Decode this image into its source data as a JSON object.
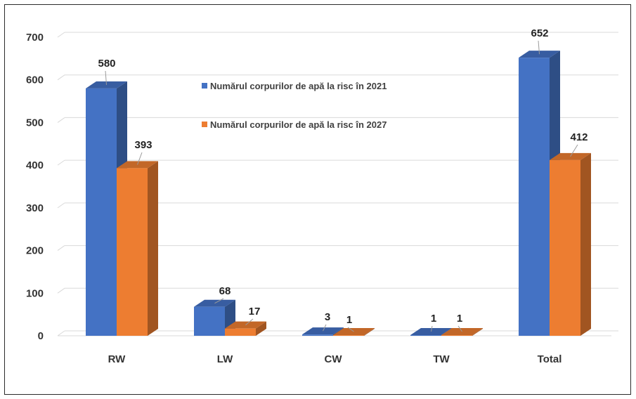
{
  "chart_data": {
    "type": "bar",
    "categories": [
      "RW",
      "LW",
      "CW",
      "TW",
      "Total"
    ],
    "series": [
      {
        "name": "Numărul corpurilor de apă la risc în 2021",
        "values": [
          580,
          68,
          3,
          1,
          652
        ],
        "color": "#4472c4"
      },
      {
        "name": "Numărul corpurilor de apă la risc în 2027",
        "values": [
          393,
          17,
          1,
          1,
          412
        ],
        "color": "#ed7d31"
      }
    ],
    "data_labels": [
      [
        "580",
        "68",
        "3",
        "1",
        "652"
      ],
      [
        "393",
        "17",
        "1",
        "1",
        "412"
      ]
    ],
    "y_ticks": [
      "0",
      "100",
      "200",
      "300",
      "400",
      "500",
      "600",
      "700"
    ],
    "ylim": [
      0,
      700
    ],
    "grid": true,
    "legend": "inside-center-top",
    "style": "3d-clustered-column"
  }
}
